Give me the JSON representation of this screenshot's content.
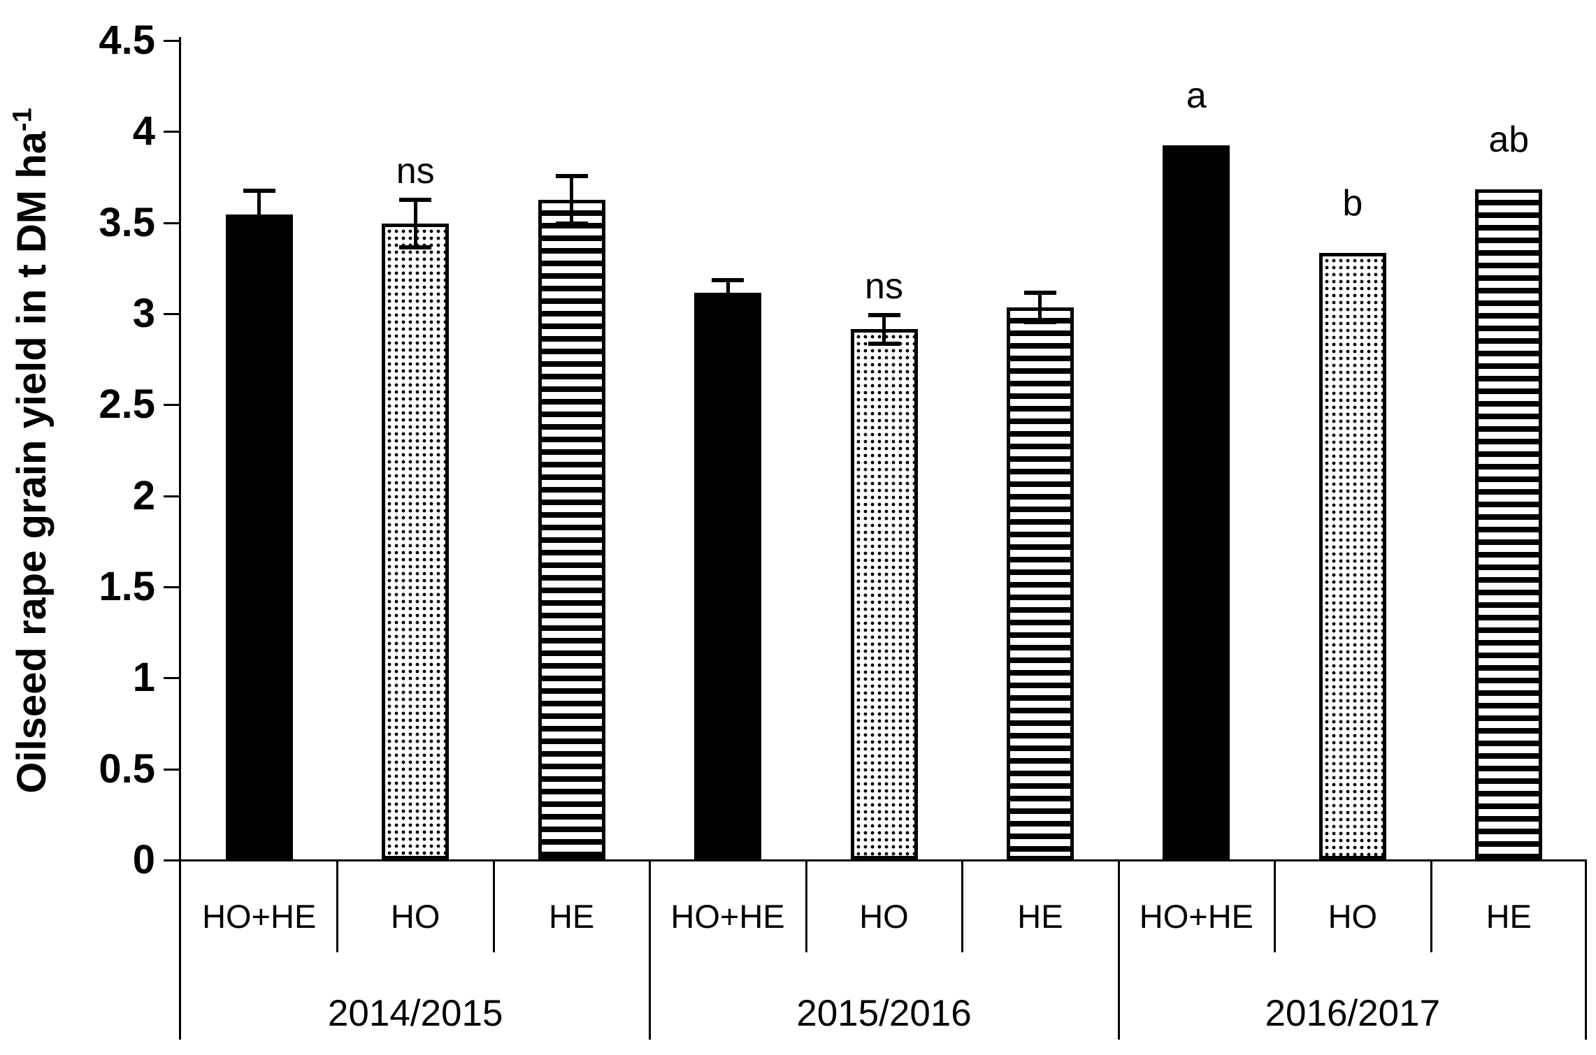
{
  "chart_data": {
    "type": "bar",
    "title": "",
    "xlabel": "",
    "ylabel": "Oilseed rape grain yield in t DM ha⁻¹",
    "ylabel_main": "Oilseed rape grain yield in t DM ha",
    "ylabel_sup": "-1",
    "ylim": [
      0,
      4.5
    ],
    "ytick_step": 0.5,
    "ytick_labels": [
      "0",
      "0.5",
      "1",
      "1.5",
      "2",
      "2.5",
      "3",
      "3.5",
      "4",
      "4.5"
    ],
    "grid": false,
    "legend": "none",
    "bar_patterns_by_treatment": {
      "HO+HE": "solid",
      "HO": "dots",
      "HE": "hstripes"
    },
    "colors": {
      "bar": "#000000",
      "background": "#ffffff",
      "axis": "#000000"
    },
    "groups": [
      {
        "year": "2014/2015",
        "bars": [
          {
            "treatment": "HO+HE",
            "pattern": "solid",
            "value": 3.54,
            "se": 0.13,
            "significance": ""
          },
          {
            "treatment": "HO",
            "pattern": "dots",
            "value": 3.49,
            "se": 0.13,
            "significance": "ns"
          },
          {
            "treatment": "HE",
            "pattern": "hstripes",
            "value": 3.62,
            "se": 0.13,
            "significance": ""
          }
        ]
      },
      {
        "year": "2015/2016",
        "bars": [
          {
            "treatment": "HO+HE",
            "pattern": "solid",
            "value": 3.11,
            "se": 0.07,
            "significance": ""
          },
          {
            "treatment": "HO",
            "pattern": "dots",
            "value": 2.91,
            "se": 0.08,
            "significance": "ns"
          },
          {
            "treatment": "HE",
            "pattern": "hstripes",
            "value": 3.03,
            "se": 0.08,
            "significance": ""
          }
        ]
      },
      {
        "year": "2016/2017",
        "bars": [
          {
            "treatment": "HO+HE",
            "pattern": "solid",
            "value": 3.92,
            "se": 0,
            "significance": "a"
          },
          {
            "treatment": "HO",
            "pattern": "dots",
            "value": 3.33,
            "se": 0,
            "significance": "b"
          },
          {
            "treatment": "HE",
            "pattern": "hstripes",
            "value": 3.68,
            "se": 0,
            "significance": "ab"
          }
        ]
      }
    ]
  }
}
